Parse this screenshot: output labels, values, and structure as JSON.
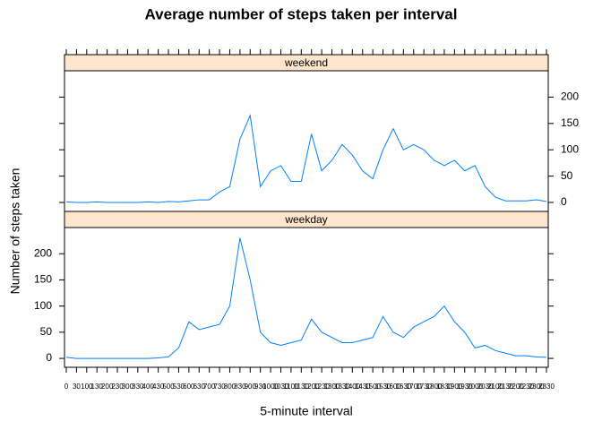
{
  "chart_data": {
    "type": "line",
    "title": "Average number of steps taken per interval",
    "x_label": "5-minute interval",
    "y_label": "Number of steps taken",
    "categories": [
      "0",
      "30",
      "100",
      "130",
      "200",
      "230",
      "300",
      "330",
      "400",
      "430",
      "500",
      "530",
      "600",
      "630",
      "700",
      "730",
      "800",
      "830",
      "900",
      "930",
      "1000",
      "1030",
      "1100",
      "1130",
      "1200",
      "1230",
      "1300",
      "1330",
      "1400",
      "1430",
      "1500",
      "1530",
      "1600",
      "1630",
      "1700",
      "1730",
      "1800",
      "1830",
      "1900",
      "1930",
      "2000",
      "2030",
      "2100",
      "2130",
      "2200",
      "2230",
      "2300",
      "2330"
    ],
    "ylim": [
      -17,
      250
    ],
    "yticks": [
      0,
      50,
      100,
      150,
      200
    ],
    "series": [
      {
        "name": "weekend",
        "color": "#0080ff",
        "values": [
          1,
          0,
          0,
          1,
          0,
          0,
          0,
          0,
          1,
          0,
          2,
          1,
          3,
          5,
          5,
          20,
          30,
          120,
          165,
          30,
          60,
          70,
          40,
          40,
          130,
          60,
          80,
          110,
          90,
          60,
          45,
          100,
          140,
          100,
          110,
          100,
          80,
          70,
          80,
          60,
          70,
          30,
          10,
          3,
          3,
          3,
          5,
          2
        ]
      },
      {
        "name": "weekday",
        "color": "#0080ff",
        "values": [
          2,
          0,
          0,
          0,
          0,
          0,
          0,
          0,
          0,
          1,
          3,
          20,
          70,
          55,
          60,
          65,
          100,
          230,
          150,
          50,
          30,
          25,
          30,
          35,
          75,
          50,
          40,
          30,
          30,
          35,
          40,
          80,
          50,
          40,
          60,
          70,
          80,
          100,
          70,
          50,
          20,
          25,
          15,
          10,
          5,
          5,
          3,
          2
        ]
      }
    ]
  }
}
